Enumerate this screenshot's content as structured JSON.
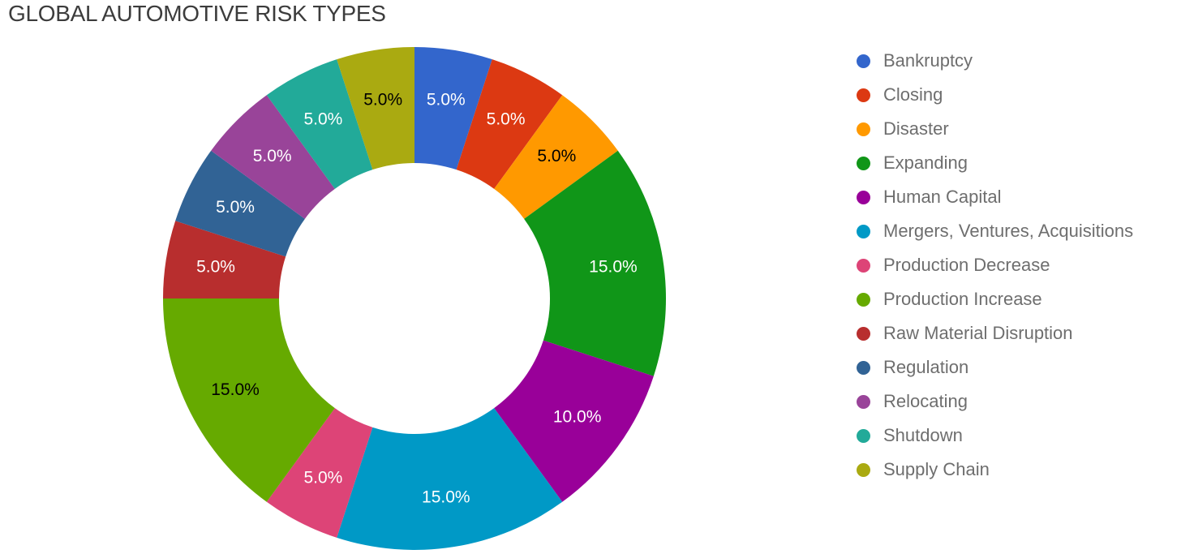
{
  "title": "GLOBAL AUTOMOTIVE RISK TYPES",
  "chart_data": {
    "type": "pie",
    "subtype": "donut",
    "title": "GLOBAL AUTOMOTIVE RISK TYPES",
    "hole_ratio": 0.54,
    "start_angle_deg": 0,
    "direction": "clockwise",
    "legend_position": "right",
    "unit": "%",
    "categories": [
      "Bankruptcy",
      "Closing",
      "Disaster",
      "Expanding",
      "Human Capital",
      "Mergers, Ventures, Acquisitions",
      "Production Decrease",
      "Production Increase",
      "Raw Material Disruption",
      "Regulation",
      "Relocating",
      "Shutdown",
      "Supply Chain"
    ],
    "values": [
      5,
      5,
      5,
      15,
      10,
      15,
      5,
      15,
      5,
      5,
      5,
      5,
      5
    ],
    "slice_labels": [
      "5.0%",
      "5.0%",
      "5.0%",
      "15.0%",
      "10.0%",
      "15.0%",
      "5.0%",
      "15.0%",
      "5.0%",
      "5.0%",
      "5.0%",
      "5.0%",
      "5.0%"
    ],
    "colors": [
      "#3366CC",
      "#DC3912",
      "#FF9900",
      "#109618",
      "#990099",
      "#0099C6",
      "#DD4477",
      "#66AA00",
      "#B82E2E",
      "#316395",
      "#994499",
      "#22AA99",
      "#AAAA11"
    ],
    "slice_label_colors": [
      "#ffffff",
      "#ffffff",
      "#000000",
      "#ffffff",
      "#ffffff",
      "#ffffff",
      "#ffffff",
      "#000000",
      "#ffffff",
      "#ffffff",
      "#ffffff",
      "#ffffff",
      "#000000"
    ]
  },
  "styles": {
    "background": "#ffffff",
    "title_color": "#3c3c3c",
    "legend_text_color": "#6e6e6e"
  }
}
